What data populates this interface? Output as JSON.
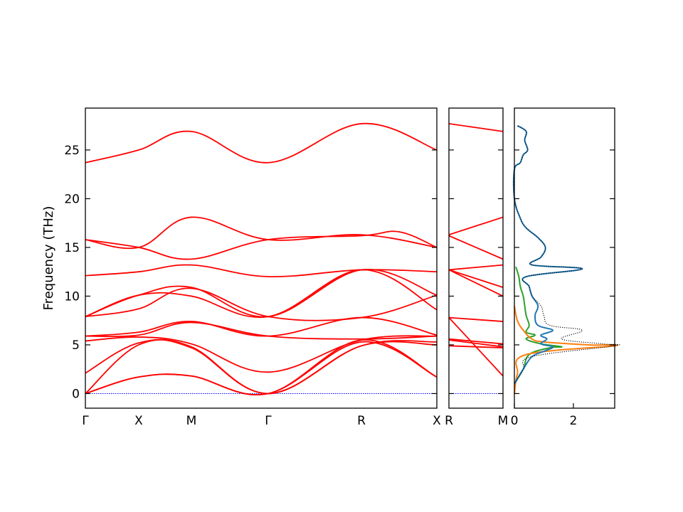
{
  "chart_data": [
    {
      "type": "line",
      "panel": "band-structure-main",
      "ylabel": "Frequency (THz)",
      "ylim": [
        -1.5,
        29.3
      ],
      "y_ticks": [
        0,
        5,
        10,
        15,
        20,
        25
      ],
      "path": [
        "Γ",
        "X",
        "M",
        "Γ",
        "R",
        "X"
      ],
      "x_ticks": [
        "Γ",
        "X",
        "M",
        "Γ",
        "R",
        "X"
      ],
      "grid": false,
      "series": [
        {
          "values": [
            [
              0,
              23.7
            ],
            [
              1,
              25.0
            ],
            [
              2,
              26.9
            ],
            [
              3,
              23.7
            ],
            [
              4,
              27.7
            ],
            [
              5,
              25.0
            ]
          ]
        },
        {
          "values": [
            [
              0,
              15.8
            ],
            [
              1,
              15.0
            ],
            [
              2,
              18.1
            ],
            [
              3,
              15.8
            ],
            [
              4,
              16.3
            ],
            [
              5,
              15.0
            ]
          ]
        },
        {
          "values": [
            [
              0,
              15.8
            ],
            [
              1,
              15.0
            ],
            [
              2,
              13.8
            ],
            [
              3,
              15.8
            ],
            [
              4,
              16.2
            ],
            [
              4.5,
              16.6
            ],
            [
              5,
              15.0
            ]
          ]
        },
        {
          "values": [
            [
              0,
              12.1
            ],
            [
              1,
              12.5
            ],
            [
              2,
              13.2
            ],
            [
              3,
              12.0
            ],
            [
              4,
              12.7
            ],
            [
              5,
              12.5
            ]
          ]
        },
        {
          "values": [
            [
              0,
              7.9
            ],
            [
              1,
              10.1
            ],
            [
              2,
              10.9
            ],
            [
              3,
              7.9
            ],
            [
              4,
              12.7
            ],
            [
              5,
              10.1
            ]
          ]
        },
        {
          "values": [
            [
              0,
              7.9
            ],
            [
              1,
              10.1
            ],
            [
              2,
              10.0
            ],
            [
              3,
              7.9
            ],
            [
              4,
              12.7
            ],
            [
              5,
              8.6
            ]
          ]
        },
        {
          "values": [
            [
              0,
              7.9
            ],
            [
              1,
              8.7
            ],
            [
              2,
              10.8
            ],
            [
              3,
              7.9
            ],
            [
              4,
              7.8
            ],
            [
              5,
              10.1
            ]
          ]
        },
        {
          "values": [
            [
              0,
              5.9
            ],
            [
              1,
              6.3
            ],
            [
              2,
              7.4
            ],
            [
              3,
              5.9
            ],
            [
              4,
              7.8
            ],
            [
              5,
              6.0
            ]
          ]
        },
        {
          "values": [
            [
              0,
              5.9
            ],
            [
              1,
              6.0
            ],
            [
              2,
              7.3
            ],
            [
              3,
              5.9
            ],
            [
              4,
              5.6
            ],
            [
              5,
              5.9
            ]
          ]
        },
        {
          "values": [
            [
              0,
              5.4
            ],
            [
              1,
              5.8
            ],
            [
              2,
              5.1
            ],
            [
              3,
              2.2
            ],
            [
              4,
              5.5
            ],
            [
              5,
              5.9
            ]
          ]
        },
        {
          "values": [
            [
              0,
              2.1
            ],
            [
              1,
              5.2
            ],
            [
              2,
              4.8
            ],
            [
              3,
              0.0
            ],
            [
              4,
              4.9
            ],
            [
              5,
              5.3
            ]
          ]
        },
        {
          "values": [
            [
              0,
              0.0
            ],
            [
              1,
              5.0
            ],
            [
              2,
              4.7
            ],
            [
              3,
              0.0
            ],
            [
              4,
              4.9
            ],
            [
              5,
              5.0
            ]
          ]
        },
        {
          "values": [
            [
              0,
              0.0
            ],
            [
              1,
              1.7
            ],
            [
              2,
              1.8
            ],
            [
              3,
              0.0
            ],
            [
              4,
              5.5
            ],
            [
              5,
              1.7
            ]
          ]
        },
        {
          "values": [
            [
              0,
              0.0
            ],
            [
              1,
              1.7
            ],
            [
              2,
              1.8
            ],
            [
              3,
              0.0
            ],
            [
              4,
              5.3
            ],
            [
              5,
              1.7
            ]
          ]
        }
      ]
    },
    {
      "type": "line",
      "panel": "band-structure-R-M",
      "path": [
        "R",
        "M"
      ],
      "x_ticks": [
        "R",
        "M"
      ],
      "ylim": [
        -1.5,
        29.3
      ],
      "series": [
        {
          "values": [
            [
              0,
              27.7
            ],
            [
              1,
              26.9
            ]
          ]
        },
        {
          "values": [
            [
              0,
              16.3
            ],
            [
              1,
              18.1
            ]
          ]
        },
        {
          "values": [
            [
              0,
              16.2
            ],
            [
              1,
              13.8
            ]
          ]
        },
        {
          "values": [
            [
              0,
              12.7
            ],
            [
              1,
              13.2
            ]
          ]
        },
        {
          "values": [
            [
              0,
              12.7
            ],
            [
              1,
              10.9
            ]
          ]
        },
        {
          "values": [
            [
              0,
              12.7
            ],
            [
              1,
              10.0
            ]
          ]
        },
        {
          "values": [
            [
              0,
              7.8
            ],
            [
              1,
              7.4
            ]
          ]
        },
        {
          "values": [
            [
              0,
              7.8
            ],
            [
              1,
              1.8
            ]
          ]
        },
        {
          "values": [
            [
              0,
              5.6
            ],
            [
              1,
              5.1
            ]
          ]
        },
        {
          "values": [
            [
              0,
              5.5
            ],
            [
              1,
              4.8
            ]
          ]
        },
        {
          "values": [
            [
              0,
              4.9
            ],
            [
              1,
              4.7
            ]
          ]
        }
      ]
    },
    {
      "type": "line",
      "panel": "density-of-states",
      "x_ticks": [
        0,
        2
      ],
      "xlim": [
        0,
        3.4
      ],
      "ylim": [
        -1.5,
        29.3
      ],
      "series": [
        {
          "color": "#1f77b4",
          "values": [
            [
              0,
              1
            ],
            [
              0.3,
              2.5
            ],
            [
              0.6,
              3.8
            ],
            [
              1.05,
              4.4
            ],
            [
              1.3,
              4.8
            ],
            [
              0.9,
              5.1
            ],
            [
              1.1,
              5.6
            ],
            [
              0.9,
              6.0
            ],
            [
              1.3,
              6.5
            ],
            [
              0.8,
              7.0
            ],
            [
              0.7,
              8.0
            ],
            [
              0.8,
              9.0
            ],
            [
              0.6,
              10.0
            ],
            [
              0.5,
              11.0
            ],
            [
              0.4,
              12.0
            ],
            [
              2.3,
              12.8
            ],
            [
              0.6,
              13.2
            ],
            [
              0.9,
              14.0
            ],
            [
              1.05,
              15.0
            ],
            [
              0.8,
              16.0
            ],
            [
              0.4,
              17.0
            ],
            [
              0.2,
              18.0
            ],
            [
              0,
              20.0
            ],
            [
              0,
              23.0
            ],
            [
              0.2,
              23.7
            ],
            [
              0.3,
              24.5
            ],
            [
              0.45,
              25.0
            ],
            [
              0.35,
              26.0
            ],
            [
              0.4,
              26.9
            ],
            [
              0.1,
              27.5
            ]
          ]
        },
        {
          "color": "#ff7f0e",
          "values": [
            [
              0,
              0
            ],
            [
              0.1,
              2.0
            ],
            [
              0.4,
              4.0
            ],
            [
              3.4,
              4.9
            ],
            [
              2.5,
              5.0
            ],
            [
              1.0,
              5.3
            ],
            [
              0.6,
              5.6
            ],
            [
              0.3,
              6.5
            ],
            [
              0.1,
              7.5
            ],
            [
              0,
              9.0
            ]
          ]
        },
        {
          "color": "#2ca02c",
          "values": [
            [
              0,
              1
            ],
            [
              0.3,
              2.5
            ],
            [
              0.5,
              4.0
            ],
            [
              1.2,
              4.7
            ],
            [
              1.6,
              4.8
            ],
            [
              0.9,
              5.1
            ],
            [
              0.4,
              5.6
            ],
            [
              0.7,
              6.0
            ],
            [
              0.4,
              6.3
            ],
            [
              0.5,
              7.0
            ],
            [
              0.4,
              8.0
            ],
            [
              0.35,
              9.0
            ],
            [
              0.3,
              10.0
            ],
            [
              0.2,
              11.0
            ],
            [
              0.15,
              12.0
            ],
            [
              0.05,
              13.0
            ]
          ]
        },
        {
          "color": "#000000",
          "dotted": true,
          "values": [
            [
              0,
              1
            ],
            [
              0.3,
              2.5
            ],
            [
              0.6,
              3.8
            ],
            [
              3.4,
              4.9
            ],
            [
              3.0,
              5.1
            ],
            [
              1.6,
              5.6
            ],
            [
              2.3,
              6.5
            ],
            [
              1.2,
              7.0
            ],
            [
              1.0,
              8.0
            ],
            [
              0.9,
              9.0
            ],
            [
              0.6,
              10.0
            ],
            [
              0.5,
              11.0
            ],
            [
              0.4,
              12.0
            ],
            [
              2.3,
              12.8
            ],
            [
              0.6,
              13.2
            ],
            [
              0.9,
              14.0
            ],
            [
              1.05,
              15.0
            ],
            [
              0.8,
              16.0
            ],
            [
              0.4,
              17.0
            ],
            [
              0.2,
              18.0
            ],
            [
              0,
              20.0
            ],
            [
              0,
              23.0
            ],
            [
              0.2,
              23.7
            ],
            [
              0.3,
              24.5
            ],
            [
              0.45,
              25.0
            ],
            [
              0.35,
              26.0
            ],
            [
              0.4,
              26.9
            ],
            [
              0.1,
              27.5
            ]
          ]
        }
      ]
    }
  ],
  "colors": {
    "band": "#ff0000",
    "zero_line": "#0000ff",
    "axes": "#000000"
  }
}
